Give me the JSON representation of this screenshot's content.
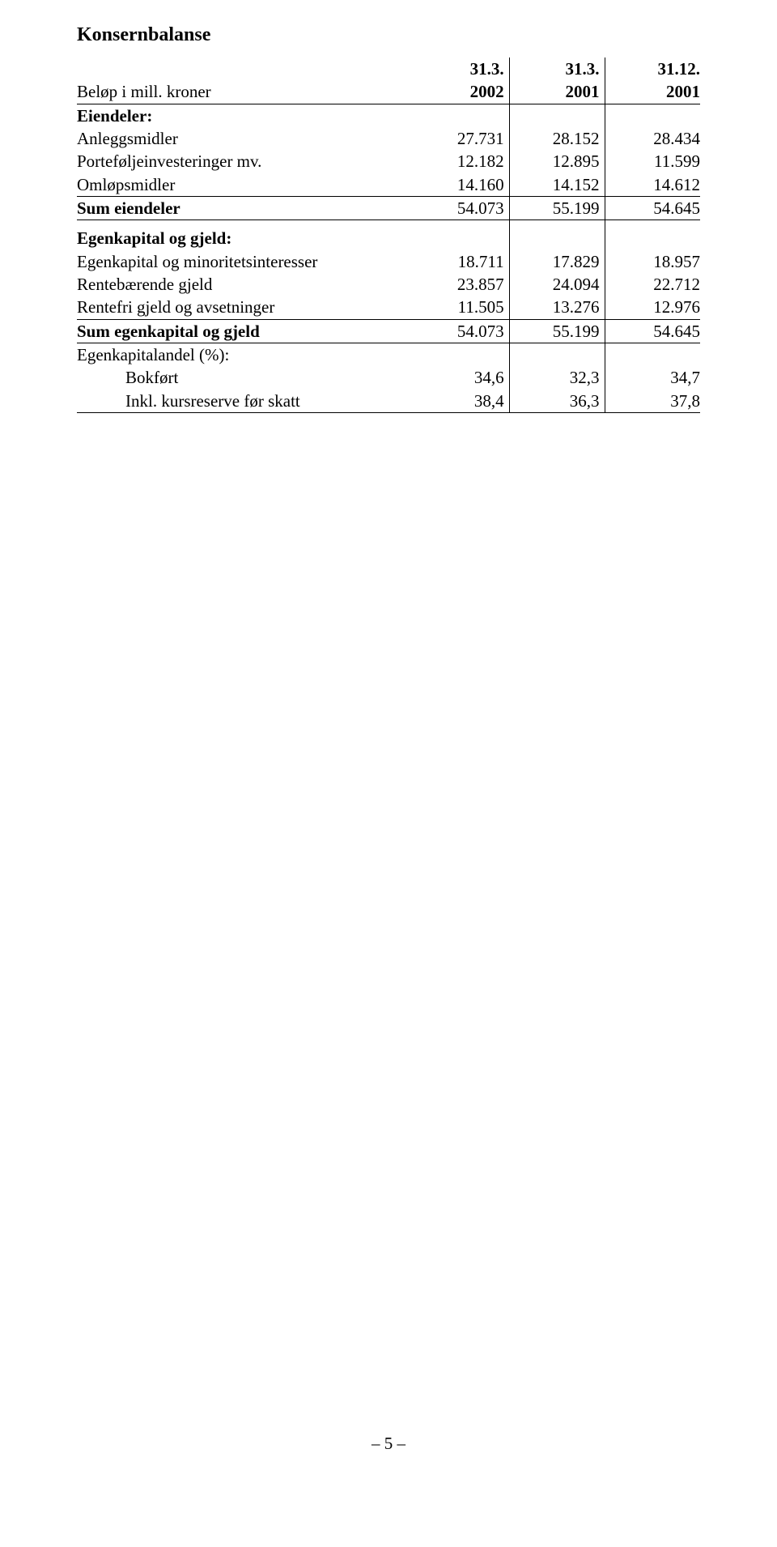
{
  "title": "Konsernbalanse",
  "header": {
    "h1": {
      "c1": "31.3.",
      "c2": "31.3.",
      "c3": "31.12."
    },
    "h2_label": "Beløp i mill. kroner",
    "h2": {
      "c1": "2002",
      "c2": "2001",
      "c3": "2001"
    }
  },
  "assets_header": "Eiendeler:",
  "assets": [
    {
      "label": "Anleggsmidler",
      "c1": "27.731",
      "c2": "28.152",
      "c3": "28.434"
    },
    {
      "label": "Porteføljeinvesteringer mv.",
      "c1": "12.182",
      "c2": "12.895",
      "c3": "11.599"
    },
    {
      "label": "Omløpsmidler",
      "c1": "14.160",
      "c2": "14.152",
      "c3": "14.612"
    }
  ],
  "sum_assets": {
    "label": "Sum eiendeler",
    "c1": "54.073",
    "c2": "55.199",
    "c3": "54.645"
  },
  "equity_header": "Egenkapital og gjeld:",
  "equity": [
    {
      "label": "Egenkapital og minoritetsinteresser",
      "c1": "18.711",
      "c2": "17.829",
      "c3": "18.957"
    },
    {
      "label": "Rentebærende gjeld",
      "c1": "23.857",
      "c2": "24.094",
      "c3": "22.712"
    },
    {
      "label": "Rentefri gjeld og avsetninger",
      "c1": "11.505",
      "c2": "13.276",
      "c3": "12.976"
    }
  ],
  "sum_equity": {
    "label": "Sum egenkapital og gjeld",
    "c1": "54.073",
    "c2": "55.199",
    "c3": "54.645"
  },
  "ratio_header": "Egenkapitalandel (%):",
  "ratios": [
    {
      "label": "Bokført",
      "c1": "34,6",
      "c2": "32,3",
      "c3": "34,7"
    },
    {
      "label": "Inkl. kursreserve før skatt",
      "c1": "38,4",
      "c2": "36,3",
      "c3": "37,8"
    }
  ],
  "page_number": "– 5 –",
  "colors": {
    "text": "#000000",
    "background": "#ffffff",
    "border": "#000000"
  },
  "fonts": {
    "family": "Times New Roman",
    "title_size_pt": 18,
    "body_size_pt": 16
  }
}
